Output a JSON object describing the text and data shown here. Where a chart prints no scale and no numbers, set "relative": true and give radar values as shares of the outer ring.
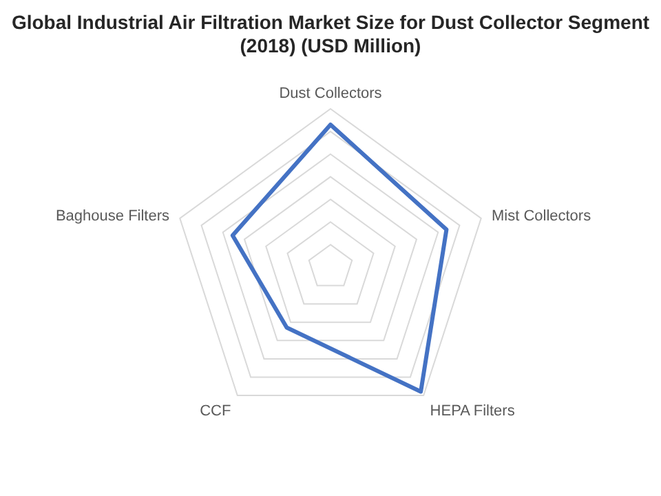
{
  "chart_data": {
    "type": "radar",
    "title": "Global Industrial Air Filtration Market Size for Dust Collector Segment (2018) (USD Million)",
    "categories": [
      "Dust Collectors",
      "Mist Collectors",
      "HEPA Filters",
      "CCF",
      "Baghouse Filters"
    ],
    "relative": true,
    "grid": true,
    "legend": false,
    "marker": "none",
    "series": [
      {
        "color": "#4472c4",
        "values": [
          0.9,
          0.77,
          0.97,
          0.47,
          0.65
        ]
      }
    ]
  }
}
